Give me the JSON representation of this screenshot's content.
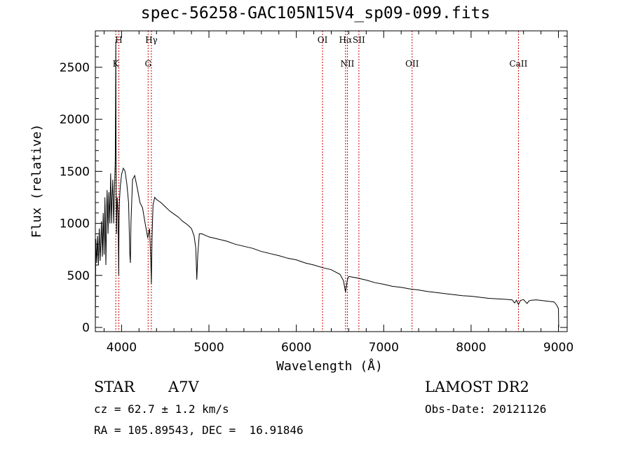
{
  "title": "spec-56258-GAC105N15V4_sp09-099.fits",
  "info": {
    "object_class": "STAR",
    "subclass": "A7V",
    "survey": "LAMOST DR2",
    "cz": "cz = 62.7 ± 1.2 km/s",
    "obs_date": "Obs-Date: 20121126",
    "coords": "RA = 105.89543, DEC =  16.91846"
  },
  "chart_data": {
    "type": "line",
    "title": "spec-56258-GAC105N15V4_sp09-099.fits",
    "xlabel": "Wavelength (Å)",
    "ylabel": "Flux (relative)",
    "xlim": [
      3700,
      9100
    ],
    "ylim": [
      -40,
      2850
    ],
    "x_ticks": [
      4000,
      5000,
      6000,
      7000,
      8000,
      9000
    ],
    "y_ticks": [
      0,
      500,
      1000,
      1500,
      2000,
      2500
    ],
    "grid": false,
    "line_markers": [
      {
        "wavelength": 3934,
        "label": "K",
        "row": 1
      },
      {
        "wavelength": 3969,
        "label": "H",
        "row": 0
      },
      {
        "wavelength": 4304,
        "label": "G",
        "row": 1
      },
      {
        "wavelength": 4341,
        "label": "Hγ",
        "row": 0
      },
      {
        "wavelength": 6300,
        "label": "OI",
        "row": 0
      },
      {
        "wavelength": 6563,
        "label": "Hα",
        "row": 0
      },
      {
        "wavelength": 6584,
        "label": "NII",
        "row": 1
      },
      {
        "wavelength": 6716,
        "label": "SII",
        "row": 0
      },
      {
        "wavelength": 7325,
        "label": "OII",
        "row": 1
      },
      {
        "wavelength": 8542,
        "label": "CaII",
        "row": 1
      }
    ],
    "spectrum": {
      "x": [
        3700,
        3705,
        3715,
        3725,
        3735,
        3745,
        3755,
        3770,
        3780,
        3790,
        3800,
        3810,
        3820,
        3830,
        3835,
        3845,
        3855,
        3865,
        3875,
        3885,
        3890,
        3900,
        3910,
        3920,
        3928,
        3932,
        3934,
        3937,
        3942,
        3950,
        3960,
        3967,
        3970,
        3975,
        3985,
        4000,
        4020,
        4040,
        4060,
        4080,
        4095,
        4101,
        4108,
        4125,
        4150,
        4180,
        4210,
        4240,
        4270,
        4300,
        4320,
        4335,
        4341,
        4348,
        4360,
        4380,
        4400,
        4450,
        4500,
        4550,
        4600,
        4650,
        4700,
        4750,
        4800,
        4830,
        4850,
        4861,
        4872,
        4890,
        4920,
        5000,
        5100,
        5200,
        5300,
        5400,
        5500,
        5600,
        5700,
        5800,
        5900,
        6000,
        6100,
        6200,
        6300,
        6400,
        6500,
        6540,
        6563,
        6585,
        6600,
        6700,
        6800,
        6900,
        7000,
        7100,
        7200,
        7300,
        7400,
        7500,
        7600,
        7700,
        7800,
        7900,
        8000,
        8100,
        8200,
        8300,
        8400,
        8470,
        8498,
        8520,
        8542,
        8565,
        8600,
        8640,
        8662,
        8690,
        8750,
        8800,
        8850,
        8900,
        8950,
        8980,
        9000,
        9003
      ],
      "y": [
        0,
        850,
        620,
        880,
        600,
        950,
        640,
        1020,
        680,
        1100,
        700,
        1250,
        600,
        1150,
        1320,
        900,
        1300,
        1000,
        1480,
        1000,
        1200,
        1420,
        1000,
        1350,
        1600,
        2300,
        2750,
        1700,
        900,
        1250,
        1100,
        500,
        950,
        1200,
        1350,
        1470,
        1530,
        1500,
        1380,
        1200,
        700,
        620,
        1000,
        1420,
        1460,
        1340,
        1200,
        1150,
        1000,
        860,
        950,
        650,
        420,
        850,
        1180,
        1250,
        1230,
        1200,
        1160,
        1120,
        1090,
        1060,
        1020,
        990,
        950,
        880,
        760,
        460,
        700,
        900,
        900,
        870,
        850,
        830,
        800,
        780,
        760,
        730,
        710,
        690,
        665,
        650,
        620,
        600,
        575,
        555,
        510,
        450,
        340,
        460,
        490,
        475,
        455,
        430,
        415,
        395,
        385,
        370,
        360,
        345,
        335,
        325,
        315,
        305,
        300,
        290,
        280,
        275,
        270,
        265,
        235,
        262,
        220,
        260,
        268,
        230,
        255,
        262,
        265,
        260,
        255,
        250,
        245,
        215,
        180,
        0
      ]
    },
    "line_color": "#000000",
    "marker_color": "#cc0000"
  }
}
